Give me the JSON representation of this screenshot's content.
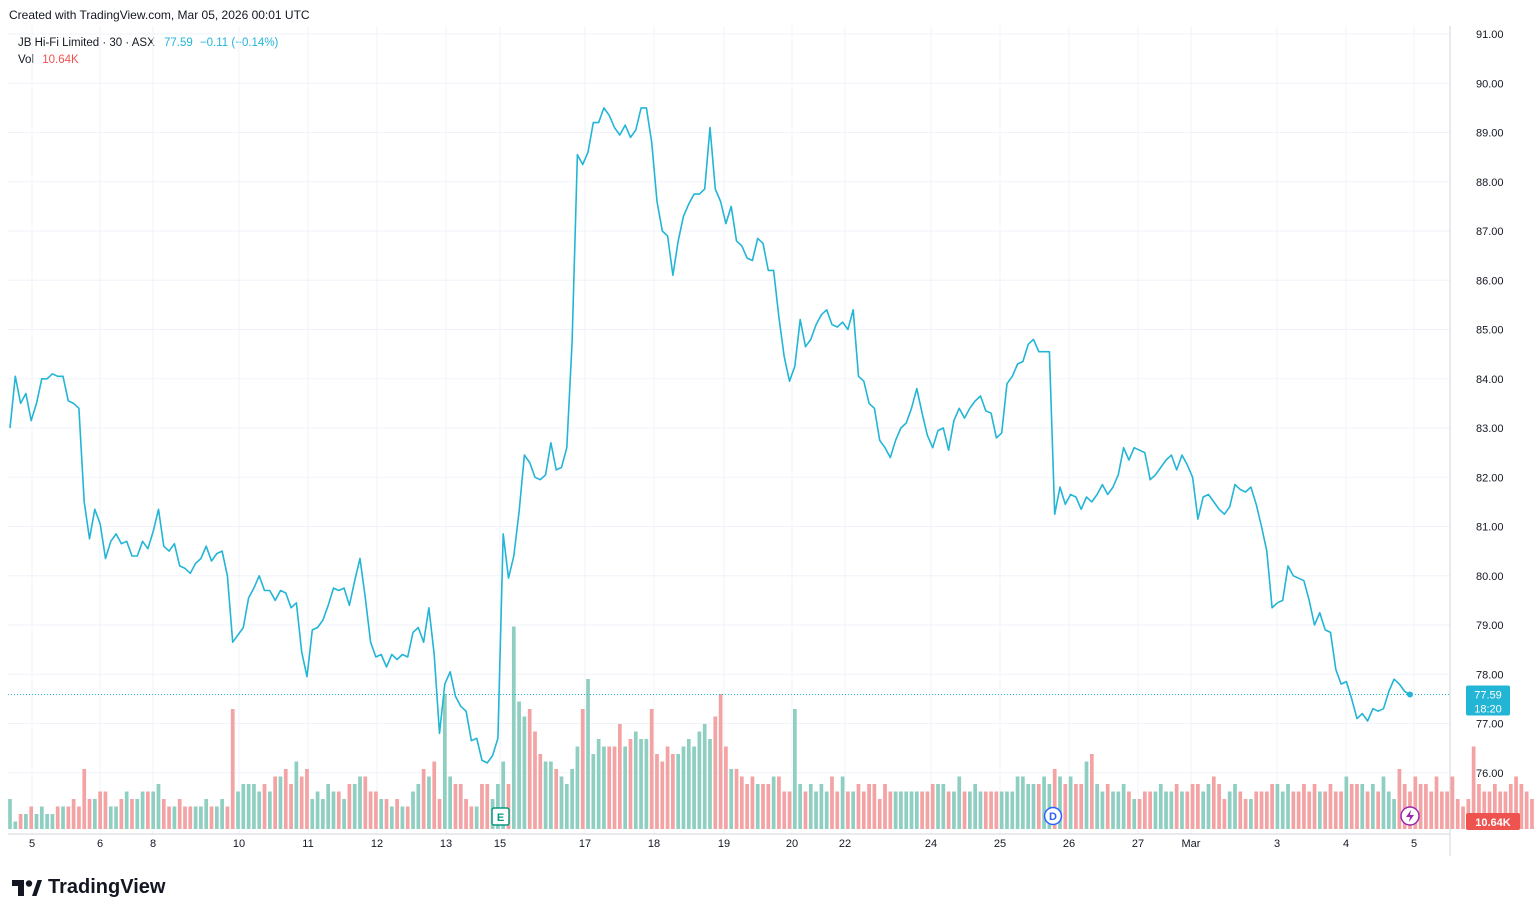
{
  "header": {
    "created": "Created with TradingView.com, Mar 05, 2026 00:01 UTC"
  },
  "legend": {
    "symbol": "JB Hi-Fi Limited · 30 · ASX",
    "last": "77.59",
    "change": "−0.11 (−0.14%)",
    "vol_label": "Vol",
    "vol_value": "10.64K"
  },
  "footer": {
    "brand": "TradingView"
  },
  "colors": {
    "line": "#22b5d6",
    "up_volume": "#8fcfc2",
    "down_volume": "#f3a3a3",
    "grid": "#f0f3fa",
    "price_badge": "#22b5d6",
    "vol_badge": "#ef5350"
  },
  "chart_data": {
    "type": "line",
    "title": "JB Hi-Fi Limited · 30 · ASX",
    "y_axis": {
      "labels": [
        "91.00",
        "90.00",
        "89.00",
        "88.00",
        "87.00",
        "86.00",
        "85.00",
        "84.00",
        "83.00",
        "82.00",
        "81.00",
        "80.00",
        "79.00",
        "78.00",
        "77.00",
        "76.00"
      ],
      "ylim": [
        75.6,
        91.3
      ]
    },
    "x_axis": {
      "labels": [
        "5",
        "6",
        "8",
        "10",
        "11",
        "12",
        "13",
        "15",
        "17",
        "18",
        "19",
        "20",
        "22",
        "24",
        "25",
        "26",
        "27",
        "Mar",
        "3",
        "4",
        "5"
      ]
    },
    "last_price": "77.59",
    "countdown": "18:20",
    "volume_last": "10.64K",
    "markers": [
      "E",
      "D"
    ],
    "series": [
      {
        "values": [
          83.0,
          84.05,
          83.5,
          83.7,
          83.15,
          83.5,
          84.0,
          84.0,
          84.1,
          84.05,
          84.05,
          83.55,
          83.5,
          83.4,
          81.5,
          80.75,
          81.35,
          81.05,
          80.35,
          80.7,
          80.85,
          80.65,
          80.7,
          80.4,
          80.4,
          80.7,
          80.55,
          80.9,
          81.35,
          80.6,
          80.5,
          80.65,
          80.2,
          80.15,
          80.05,
          80.25,
          80.35,
          80.6,
          80.3,
          80.45,
          80.5,
          80.0,
          78.65,
          78.8,
          78.95,
          79.55,
          79.75,
          80.0,
          79.7,
          79.7,
          79.5,
          79.7,
          79.65,
          79.35,
          79.45,
          78.45,
          77.95,
          78.9,
          78.95,
          79.1,
          79.4,
          79.75,
          79.7,
          79.75,
          79.4,
          79.9,
          80.35,
          79.55,
          78.65,
          78.35,
          78.4,
          78.15,
          78.4,
          78.3,
          78.4,
          78.35,
          78.85,
          78.95,
          78.65,
          79.35,
          78.4,
          76.8,
          77.8,
          78.05,
          77.55,
          77.35,
          77.25,
          76.65,
          76.7,
          76.25,
          76.2,
          76.35,
          76.7,
          80.85,
          79.95,
          80.4,
          81.3,
          82.45,
          82.3,
          82.0,
          81.95,
          82.05,
          82.7,
          82.15,
          82.2,
          82.6,
          84.75,
          88.55,
          88.35,
          88.6,
          89.2,
          89.2,
          89.5,
          89.35,
          89.1,
          88.95,
          89.15,
          88.9,
          89.05,
          89.5,
          89.5,
          88.8,
          87.6,
          87.0,
          86.9,
          86.1,
          86.8,
          87.3,
          87.55,
          87.75,
          87.75,
          87.85,
          89.1,
          87.85,
          87.6,
          87.15,
          87.5,
          86.8,
          86.7,
          86.45,
          86.4,
          86.85,
          86.75,
          86.2,
          86.2,
          85.25,
          84.45,
          83.95,
          84.25,
          85.2,
          84.65,
          84.8,
          85.1,
          85.3,
          85.4,
          85.1,
          85.05,
          85.15,
          85.0,
          85.4,
          84.05,
          83.95,
          83.5,
          83.4,
          82.75,
          82.6,
          82.4,
          82.75,
          83.0,
          83.1,
          83.4,
          83.8,
          83.3,
          82.85,
          82.6,
          82.95,
          83.0,
          82.55,
          83.15,
          83.4,
          83.2,
          83.4,
          83.55,
          83.65,
          83.35,
          83.3,
          82.8,
          82.9,
          83.9,
          84.05,
          84.3,
          84.35,
          84.7,
          84.8,
          84.55,
          84.55,
          84.55,
          81.25,
          81.8,
          81.45,
          81.65,
          81.6,
          81.35,
          81.6,
          81.5,
          81.65,
          81.85,
          81.65,
          81.8,
          82.05,
          82.6,
          82.35,
          82.6,
          82.55,
          82.5,
          81.95,
          82.05,
          82.2,
          82.35,
          82.45,
          82.15,
          82.45,
          82.25,
          82.0,
          81.15,
          81.6,
          81.65,
          81.5,
          81.35,
          81.25,
          81.4,
          81.85,
          81.75,
          81.7,
          81.8,
          81.45,
          81.0,
          80.5,
          79.35,
          79.45,
          79.5,
          80.2,
          80.0,
          79.95,
          79.9,
          79.5,
          79.0,
          79.25,
          78.9,
          78.85,
          78.1,
          77.8,
          77.85,
          77.5,
          77.1,
          77.2,
          77.05,
          77.3,
          77.25,
          77.3,
          77.65,
          77.9,
          77.8,
          77.65,
          77.59
        ]
      },
      {
        "name": "Vol",
        "values": [
          4,
          1,
          2,
          2,
          3,
          2,
          3,
          2,
          2,
          3,
          3,
          3,
          4,
          3,
          8,
          4,
          4,
          5,
          5,
          3,
          3,
          4,
          5,
          4,
          4,
          5,
          5,
          5,
          6,
          4,
          3,
          3,
          4,
          3,
          3,
          3,
          3,
          4,
          3,
          3,
          4,
          3,
          16,
          5,
          6,
          6,
          6,
          5,
          6,
          5,
          7,
          7,
          8,
          6,
          9,
          7,
          8,
          4,
          5,
          4,
          6,
          5,
          5,
          4,
          6,
          6,
          7,
          7,
          5,
          5,
          4,
          4,
          3,
          4,
          3,
          3,
          5,
          6,
          8,
          7,
          9,
          4,
          18,
          7,
          6,
          6,
          4,
          3,
          3,
          6,
          6,
          4,
          6,
          9,
          6,
          27,
          17,
          15,
          16,
          13,
          10,
          9,
          9,
          8,
          7,
          6,
          8,
          11,
          16,
          20,
          10,
          12,
          11,
          11,
          11,
          14,
          11,
          12,
          13,
          12,
          12,
          16,
          10,
          9,
          11,
          10,
          10,
          11,
          12,
          11,
          13,
          14,
          12,
          15,
          18,
          11,
          8,
          8,
          7,
          6,
          7,
          6,
          6,
          6,
          7,
          7,
          5,
          5,
          16,
          6,
          5,
          6,
          5,
          6,
          5,
          7,
          5,
          7,
          5,
          5,
          6,
          5,
          6,
          6,
          4,
          6,
          5,
          5,
          5,
          5,
          5,
          5,
          5,
          5,
          6,
          6,
          6,
          5,
          5,
          7,
          5,
          5,
          6,
          5,
          5,
          5,
          5,
          5,
          5,
          5,
          7,
          7,
          6,
          6,
          6,
          7,
          6,
          8,
          7,
          6,
          7,
          6,
          6,
          9,
          10,
          6,
          5,
          6,
          5,
          5,
          6,
          5,
          4,
          4,
          5,
          5,
          5,
          6,
          5,
          5,
          6,
          5,
          5,
          6,
          6,
          5,
          6,
          7,
          6,
          4,
          5,
          6,
          5,
          4,
          4,
          5,
          5,
          5,
          6,
          6,
          5,
          6,
          5,
          5,
          6,
          5,
          6,
          5,
          5,
          6,
          5,
          5,
          7,
          6,
          6,
          6,
          5,
          6,
          5,
          7,
          5,
          4,
          8,
          6,
          5,
          7,
          6,
          6,
          5,
          7,
          5,
          5,
          7,
          4,
          3,
          4,
          11,
          6,
          5,
          5,
          6,
          5,
          5,
          6,
          7,
          6,
          5,
          4,
          4
        ]
      }
    ]
  }
}
